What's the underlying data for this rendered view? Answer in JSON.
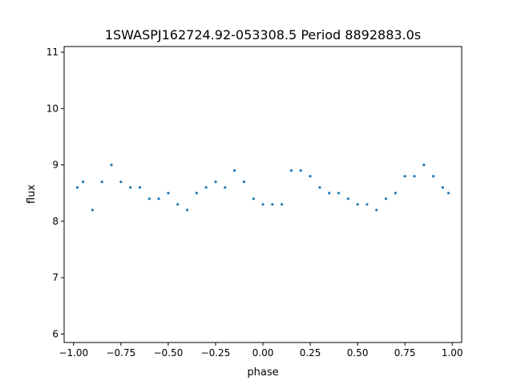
{
  "chart_data": {
    "type": "scatter",
    "title": "1SWASPJ162724.92-053308.5 Period 8892883.0s",
    "xlabel": "phase",
    "ylabel": "flux",
    "xlim": [
      -1.05,
      1.05
    ],
    "ylim": [
      5.85,
      11.1
    ],
    "xticks": [
      -1.0,
      -0.75,
      -0.5,
      -0.25,
      0.0,
      0.25,
      0.5,
      0.75,
      1.0
    ],
    "xtick_labels": [
      "−1.00",
      "−0.75",
      "−0.50",
      "−0.25",
      "0.00",
      "0.25",
      "0.50",
      "0.75",
      "1.00"
    ],
    "yticks": [
      6,
      7,
      8,
      9,
      10,
      11
    ],
    "ytick_labels": [
      "6",
      "7",
      "8",
      "9",
      "10",
      "11"
    ],
    "grid": false,
    "legend": "none",
    "point_color": "#1f77b4",
    "series": [
      {
        "x": [
          -0.98,
          -0.95,
          -0.9,
          -0.85,
          -0.8,
          -0.75,
          -0.7,
          -0.65,
          -0.6,
          -0.55,
          -0.5,
          -0.45,
          -0.4,
          -0.35,
          -0.3,
          -0.25,
          -0.2,
          -0.15,
          -0.1,
          -0.05,
          0.0,
          0.05,
          0.1,
          0.15,
          0.2,
          0.25,
          0.3,
          0.35,
          0.4,
          0.45,
          0.5,
          0.55,
          0.6,
          0.65,
          0.7,
          0.75,
          0.8,
          0.85,
          0.9,
          0.95,
          0.98
        ],
        "y": [
          8.6,
          8.7,
          8.2,
          8.7,
          9.0,
          8.7,
          8.6,
          8.6,
          8.4,
          8.4,
          8.5,
          8.3,
          8.2,
          8.5,
          8.6,
          8.7,
          8.6,
          8.9,
          8.7,
          8.4,
          8.3,
          8.3,
          8.3,
          8.9,
          8.9,
          8.8,
          8.6,
          8.5,
          8.5,
          8.4,
          8.3,
          8.3,
          8.2,
          8.4,
          8.5,
          8.8,
          8.8,
          9.0,
          8.8,
          8.6,
          8.5
        ]
      }
    ]
  }
}
